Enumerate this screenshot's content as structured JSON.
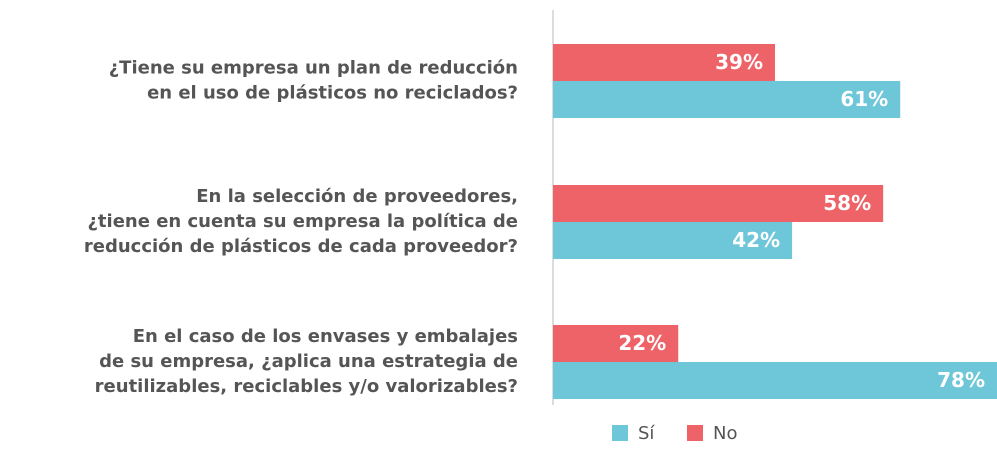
{
  "chart_data": {
    "type": "barh",
    "categories": [
      "¿Tiene su empresa un plan de reducción\nen el uso de plásticos no reciclados?",
      "En la selección de proveedores,\n¿tiene en cuenta su empresa la política de\nreducción de plásticos de cada proveedor?",
      "En el caso de los envases y embalajes\nde su empresa, ¿aplica una estrategia de\nreutilizables, reciclables y/o valorizables?"
    ],
    "series": [
      {
        "name": "Sí",
        "color": "#6ec6d9",
        "values": [
          61,
          42,
          78
        ],
        "value_labels": [
          "61%",
          "42%",
          "78%"
        ]
      },
      {
        "name": "No",
        "color": "#ee6368",
        "values": [
          39,
          58,
          22
        ],
        "value_labels": [
          "39%",
          "58%",
          "22%"
        ]
      }
    ]
  }
}
